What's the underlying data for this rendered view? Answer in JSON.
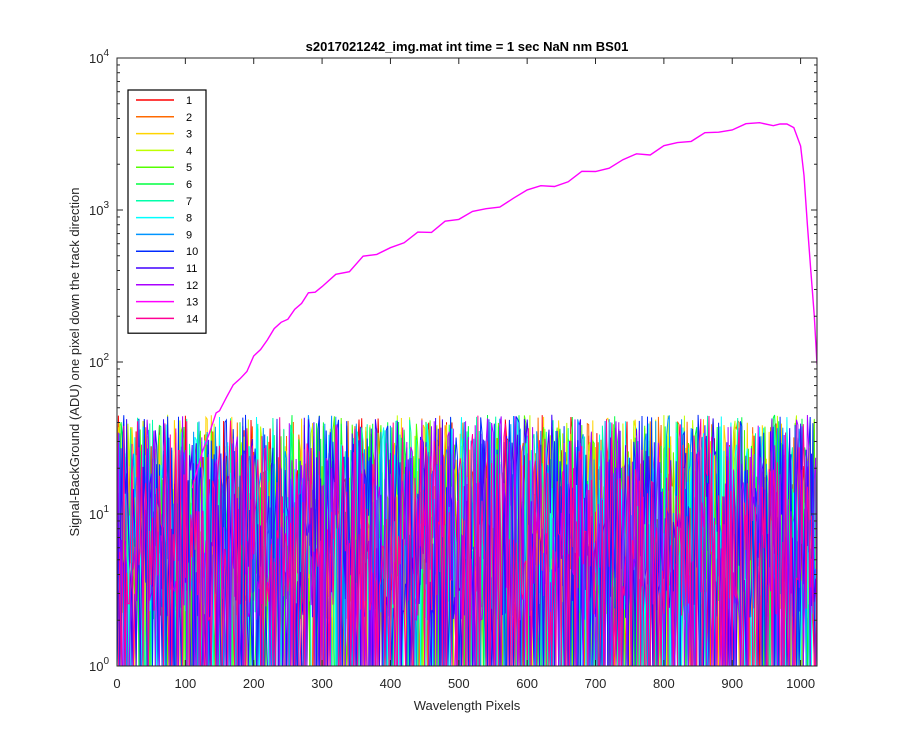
{
  "chart_data": {
    "type": "line",
    "title": "s2017021242_img.mat int time = 1 sec  NaN nm BS01",
    "xlabel": "Wavelength Pixels",
    "ylabel": "Signal-BackGround (ADU) one pixel down the track direction",
    "xlim": [
      0,
      1024
    ],
    "ylim": [
      1,
      10000
    ],
    "yscale": "log",
    "grid": false,
    "legend_position": "top-left",
    "x_ticks": [
      "0",
      "100",
      "200",
      "300",
      "400",
      "500",
      "600",
      "700",
      "800",
      "900",
      "1000"
    ],
    "y_ticks": [
      {
        "base": "10",
        "exp": "0"
      },
      {
        "base": "10",
        "exp": "1"
      },
      {
        "base": "10",
        "exp": "2"
      },
      {
        "base": "10",
        "exp": "3"
      },
      {
        "base": "10",
        "exp": "4"
      }
    ],
    "series": [
      {
        "name": "1",
        "color": "#ff0000",
        "noise": true
      },
      {
        "name": "2",
        "color": "#ff6a00",
        "noise": true
      },
      {
        "name": "3",
        "color": "#ffd400",
        "noise": true
      },
      {
        "name": "4",
        "color": "#bfff00",
        "noise": true
      },
      {
        "name": "5",
        "color": "#55ff00",
        "noise": true
      },
      {
        "name": "6",
        "color": "#00ff40",
        "noise": true
      },
      {
        "name": "7",
        "color": "#00ffaa",
        "noise": true
      },
      {
        "name": "8",
        "color": "#00ffff",
        "noise": true
      },
      {
        "name": "9",
        "color": "#0095ff",
        "noise": true
      },
      {
        "name": "10",
        "color": "#002bff",
        "noise": true
      },
      {
        "name": "11",
        "color": "#4000ff",
        "noise": true
      },
      {
        "name": "12",
        "color": "#aa00ff",
        "noise": true
      },
      {
        "name": "13",
        "color": "#ff00ff",
        "noise": false,
        "x": [
          110,
          125,
          135,
          145,
          150,
          160,
          170,
          180,
          190,
          200,
          210,
          220,
          230,
          240,
          250,
          260,
          270,
          280,
          290,
          300,
          320,
          340,
          360,
          380,
          400,
          420,
          440,
          460,
          480,
          500,
          520,
          540,
          560,
          580,
          600,
          620,
          640,
          660,
          680,
          700,
          720,
          740,
          760,
          780,
          800,
          820,
          840,
          860,
          880,
          900,
          920,
          940,
          960,
          970,
          980,
          990,
          1000,
          1005,
          1010,
          1015,
          1020,
          1024
        ],
        "y": [
          15,
          25,
          35,
          45,
          50,
          60,
          70,
          80,
          90,
          105,
          120,
          140,
          160,
          180,
          200,
          230,
          250,
          270,
          290,
          310,
          360,
          410,
          470,
          520,
          570,
          620,
          680,
          740,
          800,
          860,
          950,
          1020,
          1100,
          1200,
          1300,
          1400,
          1500,
          1600,
          1700,
          1850,
          2000,
          2100,
          2250,
          2400,
          2600,
          2750,
          2900,
          3100,
          3250,
          3400,
          3500,
          3600,
          3700,
          3750,
          3650,
          3300,
          2500,
          1600,
          800,
          400,
          200,
          100
        ]
      },
      {
        "name": "14",
        "color": "#ff0095",
        "noise": true
      }
    ],
    "noise_range": [
      1,
      45
    ]
  }
}
